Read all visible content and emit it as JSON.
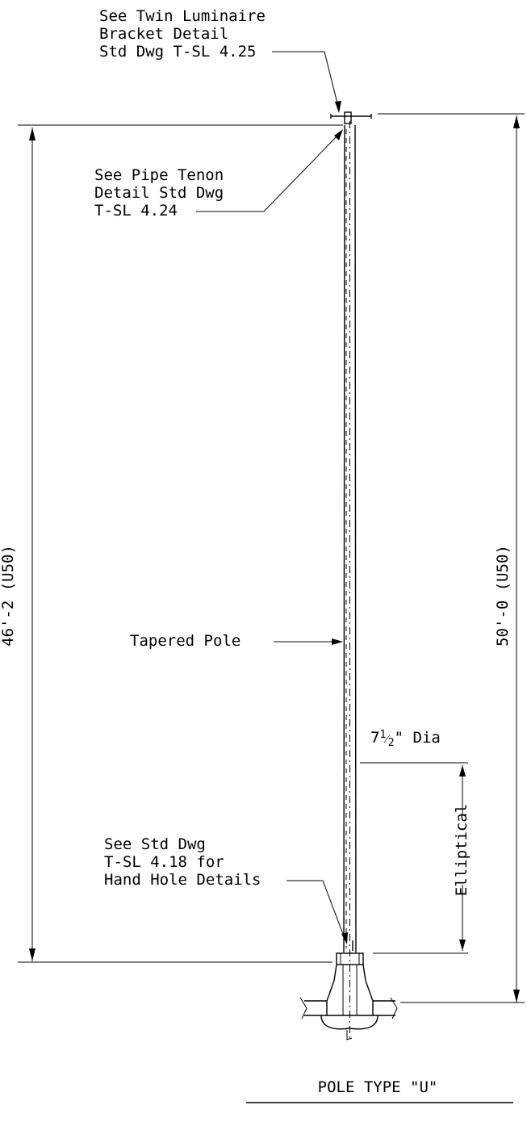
{
  "callouts": {
    "bracket": [
      "See Twin Luminaire",
      "Bracket Detail",
      "Std Dwg T-SL 4.25"
    ],
    "tenon": [
      "See Pipe Tenon",
      "Detail Std Dwg",
      "T-SL 4.24"
    ],
    "pole": "Tapered Pole",
    "handhole": [
      "See Std Dwg",
      "T-SL 4.18 for",
      "Hand Hole Details"
    ]
  },
  "dimensions": {
    "left_height": "46'-2 (U50)",
    "right_height": "50'-0 (U50)",
    "elliptical": "Elliptical",
    "diameter_prefix": "7",
    "diameter_frac_num": "1",
    "diameter_frac_den": "2",
    "diameter_suffix": "\" Dia"
  },
  "title": "POLE TYPE \"U\""
}
